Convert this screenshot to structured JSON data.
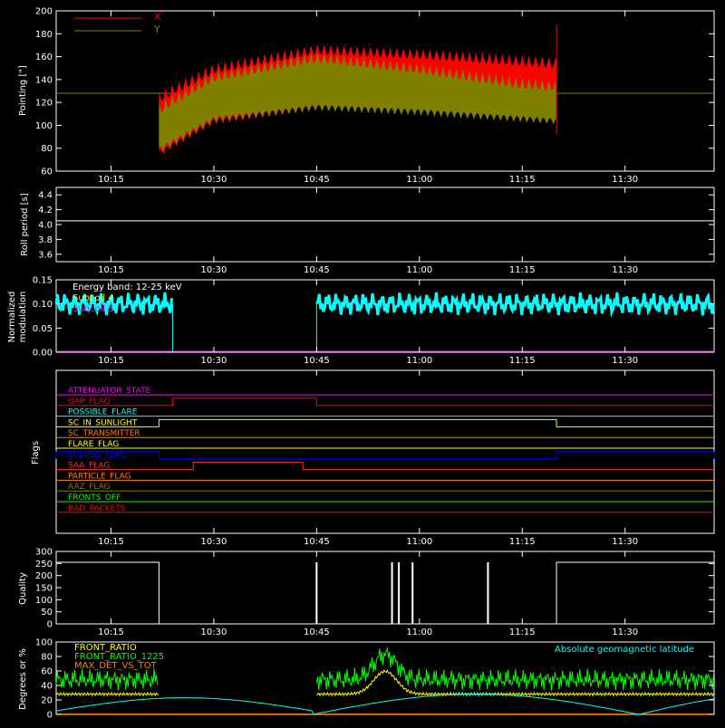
{
  "time_ticks": [
    "10:15",
    "10:30",
    "10:45",
    "11:00",
    "11:15",
    "11:30"
  ],
  "colors": {
    "axes": "#ffffff",
    "x_series": "#ff0000",
    "y_series": "#808000",
    "cyan": "#00ffff",
    "magenta": "#ff00ff",
    "yellow": "#ffff00",
    "green": "#00ff00",
    "orange": "#ff8000",
    "blue": "#0000ff",
    "red": "#ff0000"
  },
  "chart_data": [
    {
      "type": "line",
      "id": "pointing",
      "ylabel": "Pointing [\"]",
      "ylim": [
        60,
        200
      ],
      "yticks": [
        "60",
        "80",
        "100",
        "120",
        "140",
        "160",
        "180",
        "200"
      ],
      "xlim": [
        "10:07",
        "11:43"
      ],
      "series": [
        {
          "name": "X",
          "color": "#ff0000",
          "start": "10:22",
          "end": "11:20",
          "envelope_x": [
            "10:22",
            "10:30",
            "10:45",
            "11:00",
            "11:15",
            "11:20"
          ],
          "upper": [
            130,
            155,
            172,
            168,
            162,
            160
          ],
          "lower": [
            72,
            100,
            112,
            118,
            122,
            125
          ]
        },
        {
          "name": "Y",
          "color": "#808000",
          "start": "10:22",
          "end": "11:20",
          "envelope_x": [
            "10:22",
            "10:30",
            "10:45",
            "11:00",
            "11:15",
            "11:20"
          ],
          "upper": [
            120,
            148,
            165,
            155,
            142,
            140
          ],
          "lower": [
            75,
            102,
            112,
            108,
            102,
            100
          ]
        }
      ],
      "reference_line": 128
    },
    {
      "type": "line",
      "id": "roll",
      "ylabel": "Roll period [s]",
      "ylim": [
        3.5,
        4.5
      ],
      "yticks": [
        "3.6",
        "3.8",
        "4.0",
        "4.2",
        "4.4"
      ],
      "series": [
        {
          "name": "",
          "values": [
            4.05
          ],
          "color": "#ffffff"
        }
      ]
    },
    {
      "type": "line",
      "id": "modulation",
      "ylabel": "Normalized modulation",
      "ylim": [
        0,
        0.15
      ],
      "yticks": [
        "0.00",
        "0.05",
        "0.10",
        "0.15"
      ],
      "annotation": "Energy band: 12-25 keV",
      "legend": [
        "Subcoll 4",
        "Subcoll 5"
      ],
      "segments": [
        [
          "10:07",
          "10:24"
        ],
        [
          "10:45",
          "11:43"
        ]
      ],
      "level": 0.1
    },
    {
      "type": "line",
      "id": "flags",
      "ylabel": "Flags",
      "rows": [
        {
          "label": "ATTENUATOR_STATE",
          "color": "#ff00ff",
          "high": []
        },
        {
          "label": "GAP_FLAG",
          "color": "#ff0000",
          "high": [
            [
              "10:24",
              "10:45"
            ]
          ]
        },
        {
          "label": "POSSIBLE_FLARE",
          "color": "#00ffff",
          "high": []
        },
        {
          "label": "SC_IN_SUNLIGHT",
          "color": "#ffff00",
          "high": [
            [
              "10:22",
              "11:20"
            ]
          ]
        },
        {
          "label": "SC_TRANSMITTER",
          "color": "#ff8000",
          "high": []
        },
        {
          "label": "FLARE_FLAG",
          "color": "#ffff00",
          "high": []
        },
        {
          "label": "ECLIPSE_FLAG",
          "color": "#0000ff",
          "high": [
            [
              "10:07",
              "10:22"
            ],
            [
              "11:20",
              "11:43"
            ]
          ]
        },
        {
          "label": "SAA_FLAG",
          "color": "#ff3030",
          "high": [
            [
              "10:27",
              "10:43"
            ]
          ]
        },
        {
          "label": "PARTICLE_FLAG",
          "color": "#ff8000",
          "high": []
        },
        {
          "label": "AAZ_FLAG",
          "color": "#808000",
          "high": []
        },
        {
          "label": "FRONTS_OFF",
          "color": "#00ff00",
          "high": []
        },
        {
          "label": "BAD_PACKETS",
          "color": "#ff0000",
          "high": []
        }
      ]
    },
    {
      "type": "line",
      "id": "quality",
      "ylabel": "Quality",
      "ylim": [
        0,
        300
      ],
      "yticks": [
        "0",
        "50",
        "100",
        "150",
        "200",
        "250",
        "300"
      ],
      "series": [
        {
          "name": "",
          "color": "#ffffff",
          "high_intervals": [
            [
              "10:07",
              "10:22"
            ],
            [
              "11:20",
              "11:43"
            ]
          ],
          "spikes": [
            "10:45",
            "10:56",
            "10:57",
            "10:59",
            "11:10"
          ],
          "high_value": 255
        }
      ]
    },
    {
      "type": "line",
      "id": "ratios",
      "ylabel": "Degrees or %",
      "ylim": [
        0,
        100
      ],
      "yticks": [
        "0",
        "20",
        "40",
        "60",
        "80",
        "100"
      ],
      "legend": [
        "FRONT_RATIO",
        "FRONT_RATIO_1225",
        "MAX_DET_VS_TOT"
      ],
      "annotation": "Absolute geomagnetic latitude"
    }
  ]
}
